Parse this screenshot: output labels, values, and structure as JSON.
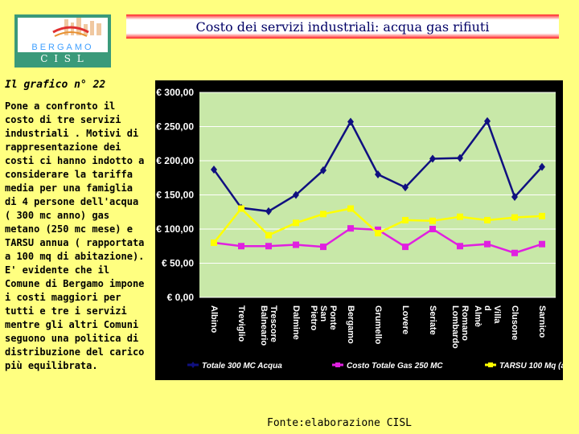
{
  "header": {
    "logo_top_text": "BERGAMO",
    "logo_bottom_text": "C I S L",
    "title": "Costo dei servizi industriali: acqua  gas  rifiuti"
  },
  "sidebar": {
    "heading": "Il grafico n° 22",
    "description": "Pone a confronto il costo di tre servizi industriali . Motivi di rappresentazione dei costi ci hanno indotto a considerare la tariffa media per una famiglia di 4 persone dell'acqua ( 300 mc anno) gas metano (250 mc mese) e TARSU annua ( rapportata a 100 mq di abitazione). E' evidente che il Comune di Bergamo impone i costi maggiori per tutti e tre i servizi mentre gli altri Comuni seguono una politica di distribuzione del carico più equilibrata."
  },
  "footer": {
    "source": "Fonte:elaborazione CISL"
  },
  "colors": {
    "page_bg": "#ffff80",
    "chart_bg": "#000000",
    "plot_bg": "#c8e8a8",
    "acqua": "#101080",
    "gas": "#e020e0",
    "tarsu": "#ffff00"
  },
  "chart_data": {
    "type": "line",
    "categories": [
      "Albino",
      "Treviglio",
      "Trescore Balneario",
      "Dalmine",
      "Ponte San Pietro",
      "Bergamo",
      "Grumello",
      "Lovere",
      "Seriate",
      "Romano Lombardo",
      "Villa d Almè",
      "Clusone",
      "Sarnico"
    ],
    "ylim": [
      0,
      300
    ],
    "y_ticks": [
      0,
      50,
      100,
      150,
      200,
      250,
      300
    ],
    "y_tick_labels": [
      "€ 0,00",
      "€ 50,00",
      "€ 100,00",
      "€ 150,00",
      "€ 200,00",
      "€ 250,00",
      "€ 300,00"
    ],
    "grid": true,
    "legend_position": "bottom",
    "series": [
      {
        "name": "Totale 300 MC Acqua",
        "color": "#101080",
        "marker": "diamond",
        "values": [
          187,
          131,
          126,
          150,
          186,
          257,
          180,
          161,
          203,
          204,
          258,
          147,
          191
        ]
      },
      {
        "name": "Costo Totale Gas 250 MC",
        "color": "#e020e0",
        "marker": "square",
        "values": [
          80,
          75,
          75,
          77,
          74,
          101,
          99,
          74,
          100,
          75,
          78,
          65,
          78
        ]
      },
      {
        "name": "TARSU 100 Mq (a",
        "color": "#ffff00",
        "marker": "square",
        "values": [
          80,
          130,
          91,
          109,
          122,
          130,
          94,
          113,
          112,
          118,
          113,
          117,
          119
        ]
      }
    ]
  }
}
